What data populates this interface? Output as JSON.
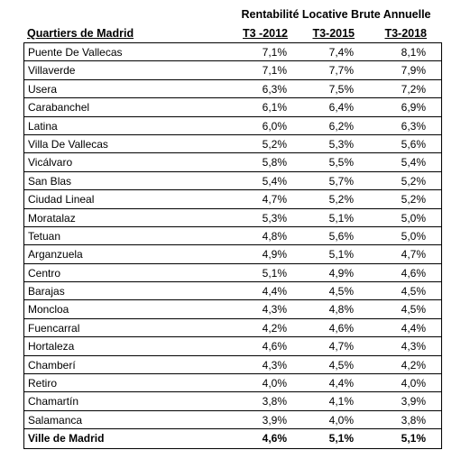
{
  "table": {
    "title": "Rentabilité Locative Brute Annuelle",
    "headers": [
      "Quartiers de Madrid",
      "T3 -2012",
      "T3-2015",
      "T3-2018"
    ],
    "rows": [
      [
        "Puente De Vallecas",
        "7,1%",
        "7,4%",
        "8,1%"
      ],
      [
        "Villaverde",
        "7,1%",
        "7,7%",
        "7,9%"
      ],
      [
        "Usera",
        "6,3%",
        "7,5%",
        "7,2%"
      ],
      [
        "Carabanchel",
        "6,1%",
        "6,4%",
        "6,9%"
      ],
      [
        "Latina",
        "6,0%",
        "6,2%",
        "6,3%"
      ],
      [
        "Villa De Vallecas",
        "5,2%",
        "5,3%",
        "5,6%"
      ],
      [
        "Vicálvaro",
        "5,8%",
        "5,5%",
        "5,4%"
      ],
      [
        "San Blas",
        "5,4%",
        "5,7%",
        "5,2%"
      ],
      [
        "Ciudad Lineal",
        "4,7%",
        "5,2%",
        "5,2%"
      ],
      [
        "Moratalaz",
        "5,3%",
        "5,1%",
        "5,0%"
      ],
      [
        "Tetuan",
        "4,8%",
        "5,6%",
        "5,0%"
      ],
      [
        "Arganzuela",
        "4,9%",
        "5,1%",
        "4,7%"
      ],
      [
        "Centro",
        "5,1%",
        "4,9%",
        "4,6%"
      ],
      [
        "Barajas",
        "4,4%",
        "4,5%",
        "4,5%"
      ],
      [
        "Moncloa",
        "4,3%",
        "4,8%",
        "4,5%"
      ],
      [
        "Fuencarral",
        "4,2%",
        "4,6%",
        "4,4%"
      ],
      [
        "Hortaleza",
        "4,6%",
        "4,7%",
        "4,3%"
      ],
      [
        "Chamberí",
        "4,3%",
        "4,5%",
        "4,2%"
      ],
      [
        "Retiro",
        "4,0%",
        "4,4%",
        "4,0%"
      ],
      [
        "Chamartín",
        "3,8%",
        "4,1%",
        "3,9%"
      ],
      [
        "Salamanca",
        "3,9%",
        "4,0%",
        "3,8%"
      ],
      [
        "Ville de Madrid",
        "4,6%",
        "5,1%",
        "5,1%"
      ]
    ]
  }
}
